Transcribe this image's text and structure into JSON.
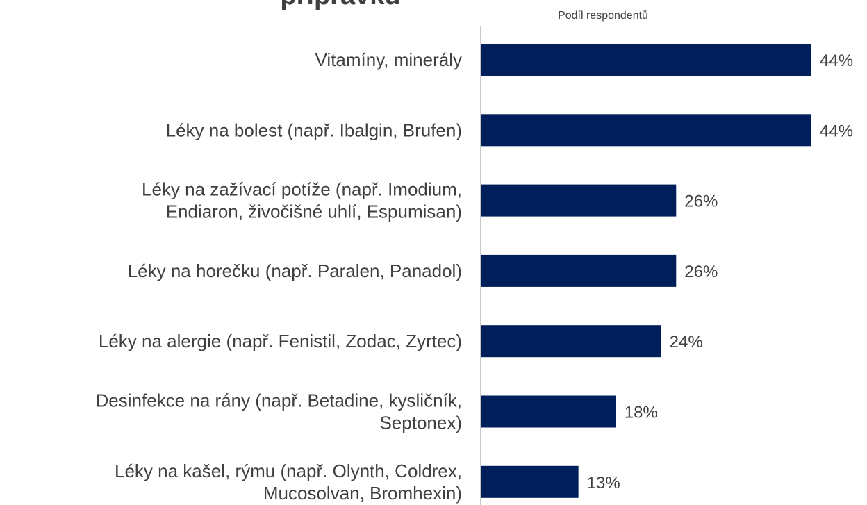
{
  "chart_data": {
    "type": "bar",
    "orientation": "horizontal",
    "title": "přípravků",
    "x_label": "Podíl respondentů",
    "categories": [
      "Vitamíny, minerály",
      "Léky na bolest (např. Ibalgin, Brufen)",
      "Léky na zažívací potíže (např. Imodium,\nEndiaron, živočišné uhlí, Espumisan)",
      "Léky na horečku (např. Paralen, Panadol)",
      "Léky na alergie (např. Fenistil, Zodac, Zyrtec)",
      "Desinfekce na rány (např. Betadine, kysličník,\nSeptonex)",
      "Léky na kašel, rýmu (např. Olynth, Coldrex,\nMucosolvan, Bromhexin)"
    ],
    "values": [
      44,
      44,
      26,
      26,
      24,
      18,
      13
    ],
    "value_labels": [
      "44%",
      "44%",
      "26%",
      "26%",
      "24%",
      "18%",
      "13%"
    ],
    "color": "#001e5a",
    "xlim": [
      0,
      44
    ]
  }
}
